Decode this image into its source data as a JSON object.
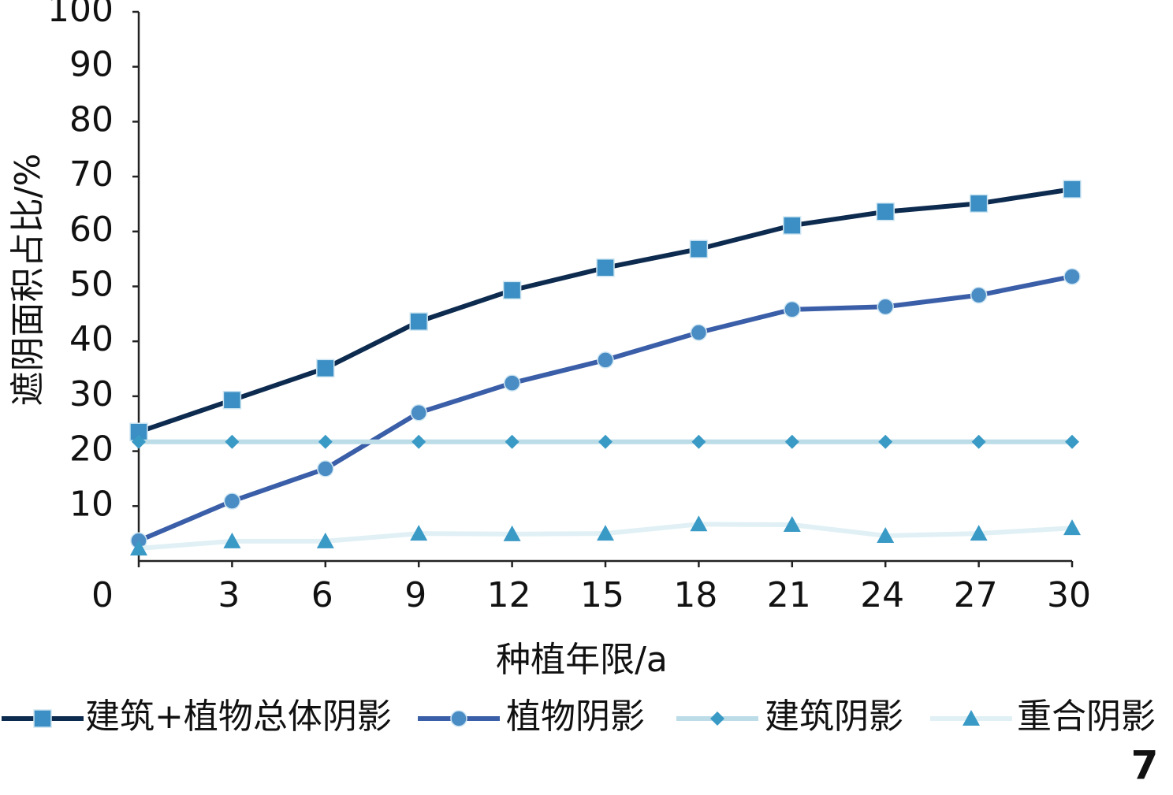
{
  "chart_data": {
    "type": "line",
    "x_label": "种植年限/a",
    "y_label": "遮阴面积占比/%",
    "panel_label": "7",
    "x": [
      0,
      3,
      6,
      9,
      12,
      15,
      18,
      21,
      24,
      27,
      30
    ],
    "xlim": [
      0,
      30
    ],
    "xticks": [
      0,
      3,
      6,
      9,
      12,
      15,
      18,
      21,
      24,
      27,
      30
    ],
    "ylim": [
      0,
      100
    ],
    "yticks": [
      10,
      20,
      30,
      40,
      50,
      60,
      70,
      80,
      90,
      100
    ],
    "grid": false,
    "legend": "bottom",
    "series": [
      {
        "name": "建筑+植物总体阴影",
        "color": "#0d2a4f",
        "marker": "square",
        "marker_color": "#3b8fc4",
        "values": [
          23.5,
          29.3,
          35.1,
          43.6,
          49.3,
          53.4,
          56.8,
          61.1,
          63.6,
          65.1,
          67.7
        ]
      },
      {
        "name": "植物阴影",
        "color": "#3a5ea8",
        "marker": "circle",
        "marker_color": "#4a8cc4",
        "values": [
          3.7,
          10.9,
          16.8,
          27.0,
          32.4,
          36.6,
          41.6,
          45.8,
          46.3,
          48.4,
          51.8
        ]
      },
      {
        "name": "建筑阴影",
        "color": "#bcdde8",
        "marker": "diamond",
        "marker_color": "#3a9ac6",
        "values": [
          21.7,
          21.7,
          21.7,
          21.7,
          21.7,
          21.7,
          21.7,
          21.7,
          21.7,
          21.7,
          21.7
        ]
      },
      {
        "name": "重合阴影",
        "color": "#e0f0f5",
        "marker": "triangle",
        "marker_color": "#3a9ac6",
        "values": [
          2.3,
          3.6,
          3.6,
          5.0,
          4.9,
          5.0,
          6.7,
          6.6,
          4.6,
          5.0,
          6.0
        ]
      }
    ]
  }
}
